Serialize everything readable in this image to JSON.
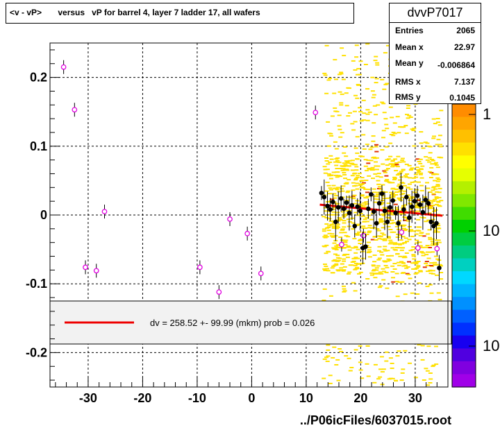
{
  "chart_data": {
    "type": "scatter",
    "title": "<v - vP>       versus   vP for barrel 4, layer 7 ladder 17, all wafers",
    "xlim": [
      -37,
      36
    ],
    "ylim": [
      -0.25,
      0.25
    ],
    "x_ticks": [
      "-30",
      "-20",
      "-10",
      "0",
      "10",
      "20",
      "30"
    ],
    "x_tick_values": [
      -30,
      -20,
      -10,
      0,
      10,
      20,
      30
    ],
    "y_ticks": [
      "0.2",
      "0.1",
      "0",
      "-0.1",
      "-0.2"
    ],
    "y_tick_values": [
      0.2,
      0.1,
      0,
      -0.1,
      -0.2
    ],
    "grid": true,
    "stats": {
      "name": "dvvP7017",
      "rows": [
        {
          "label": "Entries",
          "value": "2065"
        },
        {
          "label": "Mean x",
          "value": "22.97"
        },
        {
          "label": "Mean y",
          "value": "-0.006864"
        },
        {
          "label": "RMS x",
          "value": "7.137"
        },
        {
          "label": "RMS y",
          "value": "0.1045"
        }
      ]
    },
    "legend": {
      "text": "dv =  258.52 +- 99.99 (mkm) prob = 0.026"
    },
    "color_scale_labels": [
      "1",
      "10",
      "10"
    ],
    "fit_line": {
      "x": [
        12.5,
        35
      ],
      "y": [
        0.015,
        -0.001
      ]
    },
    "sparse_points": [
      {
        "x": -34.5,
        "y": 0.215
      },
      {
        "x": -32.5,
        "y": 0.153
      },
      {
        "x": -30.5,
        "y": -0.076
      },
      {
        "x": -28.5,
        "y": -0.081
      },
      {
        "x": -27,
        "y": 0.005
      },
      {
        "x": -9.5,
        "y": -0.076
      },
      {
        "x": -6,
        "y": -0.112
      },
      {
        "x": -4,
        "y": -0.006
      },
      {
        "x": -0.8,
        "y": -0.027
      },
      {
        "x": 1.7,
        "y": -0.085
      },
      {
        "x": 11.7,
        "y": 0.149
      },
      {
        "x": 16.5,
        "y": -0.043
      },
      {
        "x": 20.5,
        "y": -0.03
      },
      {
        "x": 27.5,
        "y": -0.025
      },
      {
        "x": 30.5,
        "y": -0.048
      },
      {
        "x": 34,
        "y": -0.049
      }
    ],
    "profile_points": [
      {
        "x": 12.8,
        "y": 0.032
      },
      {
        "x": 13.3,
        "y": 0.026
      },
      {
        "x": 13.9,
        "y": 0.013
      },
      {
        "x": 14.4,
        "y": 0.008
      },
      {
        "x": 14.9,
        "y": 0.019
      },
      {
        "x": 15.4,
        "y": -0.01
      },
      {
        "x": 15.9,
        "y": 0.011
      },
      {
        "x": 16.4,
        "y": 0.024
      },
      {
        "x": 16.9,
        "y": 0.009
      },
      {
        "x": 17.4,
        "y": 0.018
      },
      {
        "x": 17.9,
        "y": 0.003
      },
      {
        "x": 18.4,
        "y": 0.014
      },
      {
        "x": 18.9,
        "y": -0.016
      },
      {
        "x": 19.4,
        "y": 0.012
      },
      {
        "x": 19.9,
        "y": 0.006
      },
      {
        "x": 20.4,
        "y": -0.048
      },
      {
        "x": 20.9,
        "y": -0.046
      },
      {
        "x": 21.4,
        "y": 0.009
      },
      {
        "x": 21.9,
        "y": 0.03
      },
      {
        "x": 22.4,
        "y": 0.005
      },
      {
        "x": 22.9,
        "y": -0.012
      },
      {
        "x": 23.4,
        "y": 0.017
      },
      {
        "x": 23.9,
        "y": 0.031
      },
      {
        "x": 24.4,
        "y": 0.006
      },
      {
        "x": 24.9,
        "y": -0.01
      },
      {
        "x": 25.4,
        "y": 0.011
      },
      {
        "x": 25.9,
        "y": 0.021
      },
      {
        "x": 26.4,
        "y": 0.003
      },
      {
        "x": 26.9,
        "y": -0.012
      },
      {
        "x": 27.4,
        "y": 0.04
      },
      {
        "x": 27.9,
        "y": 0.008
      },
      {
        "x": 28.4,
        "y": 0.026
      },
      {
        "x": 28.9,
        "y": -0.004
      },
      {
        "x": 29.4,
        "y": 0.012
      },
      {
        "x": 29.9,
        "y": 0.02
      },
      {
        "x": 30.4,
        "y": 0.028
      },
      {
        "x": 30.9,
        "y": 0.015
      },
      {
        "x": 31.4,
        "y": 0.004
      },
      {
        "x": 31.9,
        "y": 0.022
      },
      {
        "x": 32.4,
        "y": 0.017
      },
      {
        "x": 32.9,
        "y": -0.01
      },
      {
        "x": 33.4,
        "y": -0.016
      },
      {
        "x": 33.9,
        "y": -0.012
      },
      {
        "x": 34.4,
        "y": -0.077
      }
    ]
  },
  "footer": "../P06icFiles/6037015.root"
}
